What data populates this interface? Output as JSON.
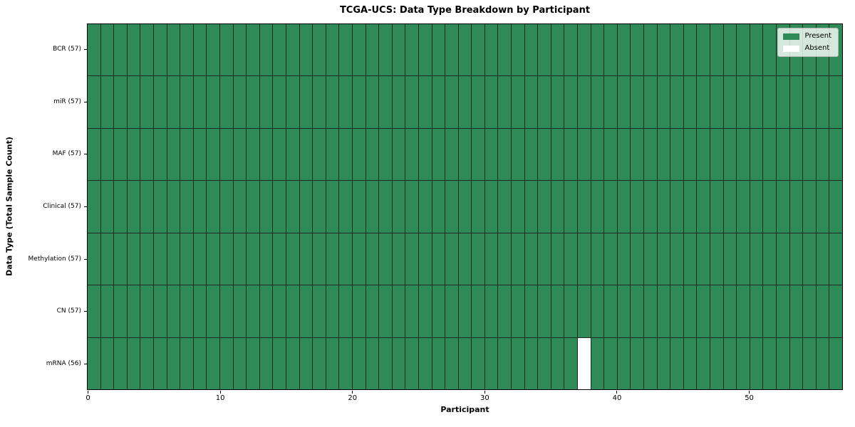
{
  "chart_data": {
    "type": "heatmap",
    "title": "TCGA-UCS: Data Type Breakdown by Participant",
    "xlabel": "Participant",
    "ylabel": "Data Type (Total Sample Count)",
    "x_ticks": [
      0,
      10,
      20,
      30,
      40,
      50
    ],
    "x_range": [
      0,
      57
    ],
    "n_participants": 57,
    "rows": [
      {
        "label": "BCR (57)",
        "data_type": "BCR",
        "total": 57,
        "absent_participants": []
      },
      {
        "label": "miR (57)",
        "data_type": "miR",
        "total": 57,
        "absent_participants": []
      },
      {
        "label": "MAF (57)",
        "data_type": "MAF",
        "total": 57,
        "absent_participants": []
      },
      {
        "label": "Clinical (57)",
        "data_type": "Clinical",
        "total": 57,
        "absent_participants": []
      },
      {
        "label": "Methylation (57)",
        "data_type": "Methylation",
        "total": 57,
        "absent_participants": []
      },
      {
        "label": "CN (57)",
        "data_type": "CN",
        "total": 57,
        "absent_participants": []
      },
      {
        "label": "mRNA (56)",
        "data_type": "mRNA",
        "total": 56,
        "absent_participants": [
          37
        ]
      }
    ],
    "legend": [
      {
        "label": "Present",
        "color": "#2e8b57"
      },
      {
        "label": "Absent",
        "color": "#ffffff"
      }
    ],
    "legend_position": "upper right",
    "grid": "cell-borders"
  },
  "colors": {
    "present": "#2e8b57",
    "absent": "#ffffff",
    "cell_border": "#1e2a22",
    "axis": "#000000",
    "legend_bg": "rgba(255,255,255,0.8)",
    "legend_border": "#b5b5b5"
  }
}
